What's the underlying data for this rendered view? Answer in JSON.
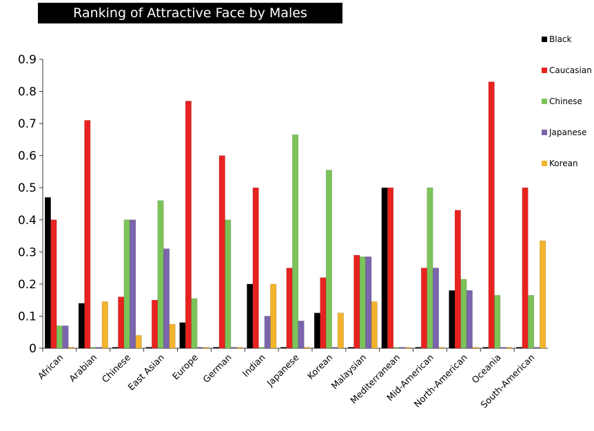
{
  "chart_data": {
    "type": "bar",
    "title": "Ranking of Attractive Face by Males",
    "xlabel": "",
    "ylabel": "",
    "ylim": [
      0,
      0.9
    ],
    "yticks": [
      0,
      0.1,
      0.2,
      0.3,
      0.4,
      0.5,
      0.6,
      0.7,
      0.8,
      0.9
    ],
    "ytick_labels": [
      "0",
      "0.1",
      "0.2",
      "0.3",
      "0.4",
      "0.5",
      "0.6",
      "0.7",
      "0.8",
      "0.9"
    ],
    "legend_position": "right",
    "grid": false,
    "categories": [
      "African",
      "Arabian",
      "Chinese",
      "East Asian",
      "Europe",
      "German",
      "Indian",
      "Japanese",
      "Korean",
      "Malaysian",
      "Mediterranean",
      "Mid-American",
      "North-American",
      "Oceania",
      "South-American"
    ],
    "series": [
      {
        "name": "Black",
        "color": "#000000",
        "values": [
          0.47,
          0.14,
          0,
          0,
          0.08,
          0,
          0.2,
          0,
          0.11,
          0,
          0.5,
          0,
          0.18,
          0,
          0
        ]
      },
      {
        "name": "Caucasian",
        "color": "#e8231f",
        "values": [
          0.4,
          0.71,
          0.16,
          0.15,
          0.77,
          0.6,
          0.5,
          0.25,
          0.22,
          0.29,
          0.5,
          0.25,
          0.43,
          0.83,
          0.5
        ]
      },
      {
        "name": "Chinese",
        "color": "#7cc35a",
        "values": [
          0.07,
          0,
          0.4,
          0.46,
          0.155,
          0.4,
          0,
          0.665,
          0.555,
          0.285,
          0,
          0.5,
          0.215,
          0.165,
          0.165
        ]
      },
      {
        "name": "Japanese",
        "color": "#7b65ad",
        "values": [
          0.07,
          0,
          0.4,
          0.31,
          0,
          0,
          0.1,
          0.085,
          0,
          0.285,
          0,
          0.25,
          0.18,
          0,
          0
        ]
      },
      {
        "name": "Korean",
        "color": "#f4b32d",
        "values": [
          0,
          0.145,
          0.04,
          0.075,
          0,
          0,
          0.2,
          0,
          0.11,
          0.145,
          0,
          0,
          0,
          0,
          0.335
        ]
      }
    ]
  }
}
